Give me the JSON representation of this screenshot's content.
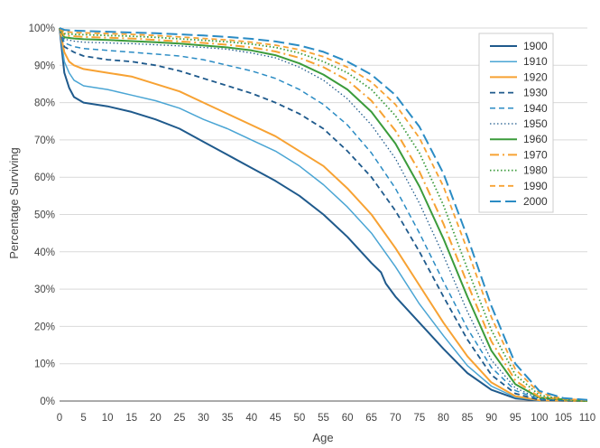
{
  "chart_data": {
    "type": "line",
    "xlabel": "Age",
    "ylabel": "Percentage Surviving",
    "xlim": [
      0,
      110
    ],
    "ylim": [
      0,
      100
    ],
    "x_ticks": [
      "0",
      "5",
      "10",
      "15",
      "20",
      "25",
      "30",
      "35",
      "40",
      "45",
      "50",
      "55",
      "60",
      "65",
      "70",
      "75",
      "80",
      "85",
      "90",
      "95",
      "100",
      "105",
      "110"
    ],
    "y_ticks": [
      "0%",
      "10%",
      "20%",
      "30%",
      "40%",
      "50%",
      "60%",
      "70%",
      "80%",
      "90%",
      "100%"
    ],
    "grid": "horizontal",
    "legend_position": "top-right",
    "series": [
      {
        "name": "1900",
        "color": "#1f5a8c",
        "style": "solid",
        "width": 2,
        "points": [
          [
            0,
            100
          ],
          [
            1,
            88
          ],
          [
            2,
            84
          ],
          [
            3,
            81.5
          ],
          [
            5,
            80
          ],
          [
            10,
            79
          ],
          [
            15,
            77.5
          ],
          [
            20,
            75.5
          ],
          [
            25,
            73
          ],
          [
            30,
            69.5
          ],
          [
            35,
            66
          ],
          [
            40,
            62.5
          ],
          [
            45,
            59
          ],
          [
            50,
            55
          ],
          [
            55,
            50
          ],
          [
            60,
            44
          ],
          [
            65,
            37
          ],
          [
            67,
            34.5
          ],
          [
            68,
            31.5
          ],
          [
            70,
            28
          ],
          [
            75,
            21
          ],
          [
            80,
            14
          ],
          [
            85,
            7.5
          ],
          [
            90,
            3
          ],
          [
            95,
            0.7
          ],
          [
            100,
            0.1
          ],
          [
            110,
            0
          ]
        ]
      },
      {
        "name": "1910",
        "color": "#4aa5d4",
        "style": "solid",
        "width": 1.5,
        "points": [
          [
            0,
            100
          ],
          [
            1,
            91
          ],
          [
            2,
            88
          ],
          [
            3,
            86
          ],
          [
            5,
            84.5
          ],
          [
            10,
            83.5
          ],
          [
            15,
            82
          ],
          [
            20,
            80.5
          ],
          [
            25,
            78.5
          ],
          [
            30,
            75.5
          ],
          [
            35,
            73
          ],
          [
            40,
            70
          ],
          [
            45,
            67
          ],
          [
            50,
            63
          ],
          [
            55,
            58
          ],
          [
            60,
            52
          ],
          [
            65,
            45
          ],
          [
            70,
            36
          ],
          [
            75,
            26
          ],
          [
            80,
            17.5
          ],
          [
            85,
            9.5
          ],
          [
            90,
            4
          ],
          [
            95,
            1
          ],
          [
            100,
            0.2
          ],
          [
            110,
            0
          ]
        ]
      },
      {
        "name": "1920",
        "color": "#f7a233",
        "style": "solid",
        "width": 2,
        "points": [
          [
            0,
            100
          ],
          [
            1,
            93.5
          ],
          [
            2,
            91
          ],
          [
            3,
            90
          ],
          [
            5,
            89
          ],
          [
            10,
            88
          ],
          [
            15,
            87
          ],
          [
            20,
            85
          ],
          [
            25,
            83
          ],
          [
            30,
            80
          ],
          [
            35,
            77
          ],
          [
            40,
            74
          ],
          [
            45,
            71
          ],
          [
            50,
            67
          ],
          [
            55,
            63
          ],
          [
            60,
            57
          ],
          [
            65,
            50
          ],
          [
            70,
            41
          ],
          [
            75,
            31
          ],
          [
            80,
            21
          ],
          [
            85,
            12
          ],
          [
            90,
            5
          ],
          [
            95,
            1.3
          ],
          [
            100,
            0.2
          ],
          [
            110,
            0
          ]
        ]
      },
      {
        "name": "1930",
        "color": "#1f5a8c",
        "style": "dash",
        "width": 1.8,
        "points": [
          [
            0,
            100
          ],
          [
            1,
            95
          ],
          [
            3,
            93.5
          ],
          [
            5,
            92.5
          ],
          [
            10,
            91.5
          ],
          [
            15,
            91
          ],
          [
            20,
            90
          ],
          [
            25,
            88.5
          ],
          [
            30,
            86.5
          ],
          [
            35,
            84.5
          ],
          [
            40,
            82.5
          ],
          [
            45,
            80
          ],
          [
            50,
            77
          ],
          [
            55,
            73
          ],
          [
            60,
            67
          ],
          [
            65,
            60
          ],
          [
            70,
            51
          ],
          [
            75,
            40
          ],
          [
            80,
            28
          ],
          [
            85,
            16.5
          ],
          [
            90,
            7
          ],
          [
            95,
            2
          ],
          [
            100,
            0.3
          ],
          [
            110,
            0
          ]
        ]
      },
      {
        "name": "1940",
        "color": "#2b8cc4",
        "style": "dash",
        "width": 1.5,
        "points": [
          [
            0,
            100
          ],
          [
            1,
            96
          ],
          [
            3,
            95
          ],
          [
            5,
            94.5
          ],
          [
            10,
            94
          ],
          [
            15,
            93.5
          ],
          [
            20,
            93
          ],
          [
            25,
            92.5
          ],
          [
            30,
            91.5
          ],
          [
            35,
            90
          ],
          [
            40,
            88.5
          ],
          [
            45,
            86.5
          ],
          [
            50,
            83.5
          ],
          [
            55,
            79.5
          ],
          [
            60,
            74
          ],
          [
            65,
            66.5
          ],
          [
            70,
            57
          ],
          [
            75,
            45
          ],
          [
            80,
            32
          ],
          [
            85,
            19.5
          ],
          [
            90,
            9
          ],
          [
            95,
            2.8
          ],
          [
            100,
            0.5
          ],
          [
            110,
            0
          ]
        ]
      },
      {
        "name": "1950",
        "color": "#1f5a8c",
        "style": "dot",
        "width": 1.3,
        "points": [
          [
            0,
            100
          ],
          [
            1,
            97
          ],
          [
            3,
            96.5
          ],
          [
            5,
            96.2
          ],
          [
            10,
            96
          ],
          [
            15,
            95.8
          ],
          [
            20,
            95.5
          ],
          [
            25,
            95.2
          ],
          [
            30,
            94.8
          ],
          [
            35,
            94.3
          ],
          [
            40,
            93.3
          ],
          [
            45,
            92
          ],
          [
            50,
            89.5
          ],
          [
            55,
            86
          ],
          [
            60,
            81
          ],
          [
            65,
            74
          ],
          [
            70,
            65
          ],
          [
            75,
            53
          ],
          [
            80,
            39
          ],
          [
            85,
            24
          ],
          [
            90,
            11
          ],
          [
            95,
            3.5
          ],
          [
            100,
            0.6
          ],
          [
            110,
            0
          ]
        ]
      },
      {
        "name": "1960",
        "color": "#3b9b3b",
        "style": "solid",
        "width": 2,
        "points": [
          [
            0,
            100
          ],
          [
            1,
            97.5
          ],
          [
            3,
            97.2
          ],
          [
            5,
            97
          ],
          [
            10,
            96.8
          ],
          [
            15,
            96.5
          ],
          [
            20,
            96.2
          ],
          [
            25,
            95.8
          ],
          [
            30,
            95.3
          ],
          [
            35,
            94.8
          ],
          [
            40,
            94
          ],
          [
            45,
            92.7
          ],
          [
            50,
            90.5
          ],
          [
            55,
            87.5
          ],
          [
            60,
            83.5
          ],
          [
            65,
            77.5
          ],
          [
            70,
            69
          ],
          [
            75,
            57.5
          ],
          [
            80,
            43.5
          ],
          [
            85,
            28
          ],
          [
            90,
            13.5
          ],
          [
            95,
            4.5
          ],
          [
            100,
            0.9
          ],
          [
            110,
            0
          ]
        ]
      },
      {
        "name": "1970",
        "color": "#f7a233",
        "style": "dashdot",
        "width": 2,
        "points": [
          [
            0,
            100
          ],
          [
            1,
            98
          ],
          [
            3,
            97.8
          ],
          [
            5,
            97.6
          ],
          [
            10,
            97.4
          ],
          [
            15,
            97.2
          ],
          [
            20,
            96.8
          ],
          [
            25,
            96.4
          ],
          [
            30,
            96
          ],
          [
            35,
            95.5
          ],
          [
            40,
            94.8
          ],
          [
            45,
            93.7
          ],
          [
            50,
            92
          ],
          [
            55,
            89.5
          ],
          [
            60,
            86
          ],
          [
            65,
            80.5
          ],
          [
            70,
            72.5
          ],
          [
            75,
            61.5
          ],
          [
            80,
            47.5
          ],
          [
            85,
            31.5
          ],
          [
            90,
            16
          ],
          [
            95,
            5.5
          ],
          [
            100,
            1.1
          ],
          [
            110,
            0
          ]
        ]
      },
      {
        "name": "1980",
        "color": "#3b9b3b",
        "style": "dot",
        "width": 1.8,
        "points": [
          [
            0,
            100
          ],
          [
            1,
            98.5
          ],
          [
            3,
            98.3
          ],
          [
            5,
            98.2
          ],
          [
            10,
            98
          ],
          [
            15,
            97.8
          ],
          [
            20,
            97.5
          ],
          [
            25,
            97.1
          ],
          [
            30,
            96.7
          ],
          [
            35,
            96.3
          ],
          [
            40,
            95.7
          ],
          [
            45,
            94.8
          ],
          [
            50,
            93.3
          ],
          [
            55,
            91
          ],
          [
            60,
            88
          ],
          [
            65,
            83.5
          ],
          [
            70,
            76.5
          ],
          [
            75,
            66.5
          ],
          [
            80,
            52.5
          ],
          [
            85,
            35.5
          ],
          [
            90,
            19
          ],
          [
            95,
            7
          ],
          [
            100,
            1.6
          ],
          [
            105,
            0.4
          ],
          [
            110,
            0
          ]
        ]
      },
      {
        "name": "1990",
        "color": "#f7a233",
        "style": "dash",
        "width": 1.8,
        "points": [
          [
            0,
            100
          ],
          [
            1,
            99
          ],
          [
            3,
            98.8
          ],
          [
            5,
            98.7
          ],
          [
            10,
            98.5
          ],
          [
            15,
            98.3
          ],
          [
            20,
            98
          ],
          [
            25,
            97.6
          ],
          [
            30,
            97.2
          ],
          [
            35,
            96.8
          ],
          [
            40,
            96.2
          ],
          [
            45,
            95.4
          ],
          [
            50,
            94.2
          ],
          [
            55,
            92.3
          ],
          [
            60,
            89.5
          ],
          [
            65,
            85.5
          ],
          [
            70,
            79.5
          ],
          [
            75,
            70.5
          ],
          [
            80,
            57.5
          ],
          [
            85,
            40.5
          ],
          [
            90,
            22.5
          ],
          [
            95,
            8.5
          ],
          [
            100,
            2.2
          ],
          [
            105,
            0.6
          ],
          [
            110,
            0.2
          ]
        ]
      },
      {
        "name": "2000",
        "color": "#2b8cc4",
        "style": "longdash",
        "width": 2,
        "points": [
          [
            0,
            100
          ],
          [
            1,
            99.5
          ],
          [
            3,
            99.3
          ],
          [
            5,
            99.2
          ],
          [
            10,
            99
          ],
          [
            15,
            98.8
          ],
          [
            20,
            98.6
          ],
          [
            25,
            98.3
          ],
          [
            30,
            98
          ],
          [
            35,
            97.6
          ],
          [
            40,
            97.1
          ],
          [
            45,
            96.4
          ],
          [
            50,
            95.3
          ],
          [
            55,
            93.6
          ],
          [
            60,
            91
          ],
          [
            65,
            87.5
          ],
          [
            70,
            82
          ],
          [
            75,
            73.5
          ],
          [
            80,
            61
          ],
          [
            85,
            44
          ],
          [
            90,
            25.5
          ],
          [
            95,
            10
          ],
          [
            100,
            2.7
          ],
          [
            105,
            0.8
          ],
          [
            110,
            0.3
          ]
        ]
      }
    ]
  }
}
